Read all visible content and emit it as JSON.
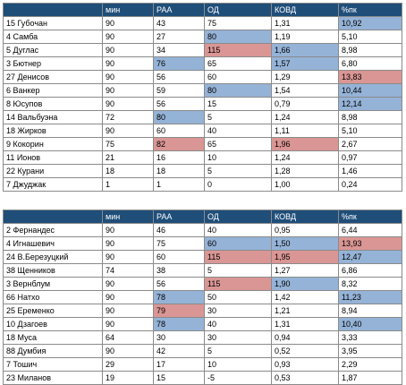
{
  "colors": {
    "header": "#1f4e79",
    "blue": "#95b3d7",
    "red": "#da9694",
    "grid": "#8a8a8a"
  },
  "tables": [
    {
      "headers": [
        "",
        "мин",
        "РАА",
        "ОД",
        "КОВД",
        "%пк"
      ],
      "rows": [
        {
          "cells": [
            "15 Губочан",
            "90",
            "43",
            "75",
            "1,31",
            "10,92"
          ],
          "hl": {
            "5": "blue"
          }
        },
        {
          "cells": [
            "4 Самба",
            "90",
            "27",
            "80",
            "1,19",
            "5,10"
          ],
          "hl": {
            "3": "blue"
          }
        },
        {
          "cells": [
            "5 Дуглас",
            "90",
            "34",
            "115",
            "1,66",
            "8,98"
          ],
          "hl": {
            "3": "red",
            "4": "blue"
          }
        },
        {
          "cells": [
            "3 Бютнер",
            "90",
            "76",
            "65",
            "1,57",
            "6,80"
          ],
          "hl": {
            "2": "blue",
            "4": "blue"
          }
        },
        {
          "cells": [
            "27 Денисов",
            "90",
            "56",
            "60",
            "1,29",
            "13,83"
          ],
          "hl": {
            "5": "red"
          }
        },
        {
          "cells": [
            "6 Ванкер",
            "90",
            "59",
            "80",
            "1,54",
            "10,44"
          ],
          "hl": {
            "3": "blue",
            "5": "blue"
          }
        },
        {
          "cells": [
            "8 Юсупов",
            "90",
            "56",
            "15",
            "0,79",
            "12,14"
          ],
          "hl": {
            "5": "blue"
          }
        },
        {
          "cells": [
            "14 Вальбуэна",
            "72",
            "80",
            "5",
            "1,24",
            "8,98"
          ],
          "hl": {
            "2": "blue"
          }
        },
        {
          "cells": [
            "18 Жирков",
            "90",
            "60",
            "40",
            "1,11",
            "5,10"
          ],
          "hl": {}
        },
        {
          "cells": [
            "9 Кокорин",
            "75",
            "82",
            "65",
            "1,96",
            "2,67"
          ],
          "hl": {
            "2": "red",
            "4": "red"
          }
        },
        {
          "cells": [
            "11 Ионов",
            "21",
            "16",
            "10",
            "1,24",
            "0,97"
          ],
          "hl": {}
        },
        {
          "cells": [
            "22 Курани",
            "18",
            "18",
            "5",
            "1,28",
            "1,46"
          ],
          "hl": {}
        },
        {
          "cells": [
            "7 Джуджак",
            "1",
            "1",
            "0",
            "1,00",
            "0,24"
          ],
          "hl": {}
        }
      ]
    },
    {
      "headers": [
        "",
        "мин",
        "РАА",
        "ОД",
        "КОВД",
        "%пк"
      ],
      "rows": [
        {
          "cells": [
            "2 Фернандес",
            "90",
            "46",
            "40",
            "0,95",
            "6,44"
          ],
          "hl": {}
        },
        {
          "cells": [
            "4 Игнашевич",
            "90",
            "75",
            "60",
            "1,50",
            "13,93"
          ],
          "hl": {
            "3": "blue",
            "4": "blue",
            "5": "red"
          }
        },
        {
          "cells": [
            "24 В.Березуцкий",
            "90",
            "60",
            "115",
            "1,95",
            "12,47"
          ],
          "hl": {
            "3": "red",
            "4": "red",
            "5": "blue"
          }
        },
        {
          "cells": [
            "38 Щенников",
            "74",
            "38",
            "5",
            "1,27",
            "6,86"
          ],
          "hl": {}
        },
        {
          "cells": [
            "3 Вернблум",
            "90",
            "56",
            "115",
            "1,90",
            "8,32"
          ],
          "hl": {
            "3": "red",
            "4": "blue"
          }
        },
        {
          "cells": [
            "66 Натхо",
            "90",
            "78",
            "50",
            "1,42",
            "11,23"
          ],
          "hl": {
            "2": "blue",
            "5": "blue"
          }
        },
        {
          "cells": [
            "25 Еременко",
            "90",
            "79",
            "30",
            "1,21",
            "8,94"
          ],
          "hl": {
            "2": "red"
          }
        },
        {
          "cells": [
            "10 Дзагоев",
            "90",
            "78",
            "40",
            "1,31",
            "10,40"
          ],
          "hl": {
            "2": "blue",
            "5": "blue"
          }
        },
        {
          "cells": [
            "18 Муса",
            "64",
            "30",
            "30",
            "0,94",
            "3,33"
          ],
          "hl": {}
        },
        {
          "cells": [
            "88 Думбия",
            "90",
            "42",
            "5",
            "0,52",
            "3,95"
          ],
          "hl": {}
        },
        {
          "cells": [
            "7 Тошич",
            "29",
            "17",
            "10",
            "0,93",
            "2,29"
          ],
          "hl": {}
        },
        {
          "cells": [
            "23 Миланов",
            "19",
            "15",
            "-5",
            "0,53",
            "1,87"
          ],
          "hl": {}
        }
      ]
    }
  ]
}
